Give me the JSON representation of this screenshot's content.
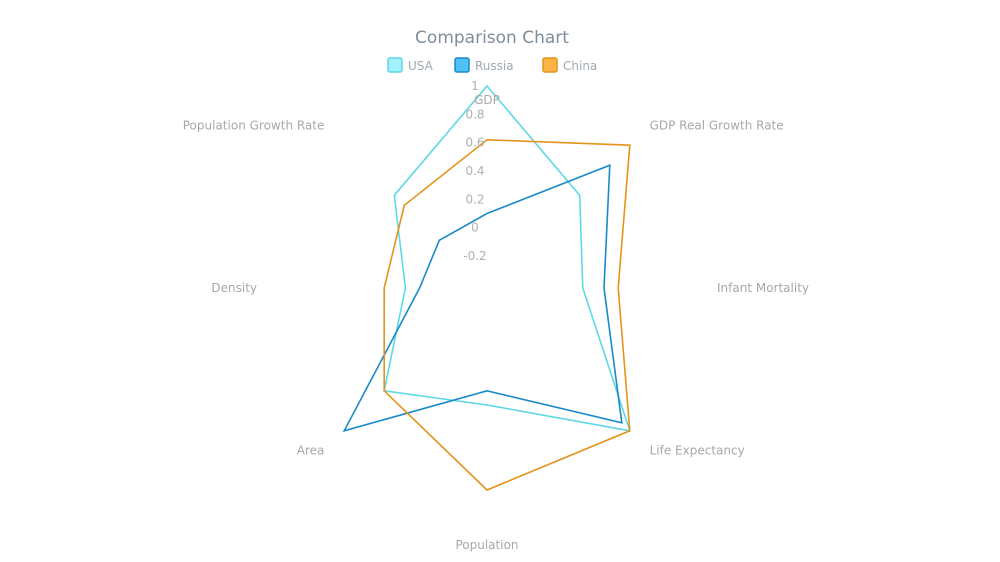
{
  "chart_data": {
    "type": "radar",
    "title": "Comparison Chart",
    "categories": [
      "GDP",
      "GDP Real Growth Rate",
      "Infant Mortality",
      "Life Expectancy",
      "Population",
      "Area",
      "Density",
      "Population Growth Rate"
    ],
    "rticks": [
      "1",
      "0.8",
      "0.6",
      "0.4",
      "0.2",
      "0",
      "-0.2"
    ],
    "rlim": [
      -0.2,
      1
    ],
    "grid": false,
    "legend_position": "top-center",
    "series": [
      {
        "name": "USA",
        "color": "#5fd8e6",
        "fill": "#a4f2ff",
        "values": [
          1,
          0.5,
          0.25,
          1,
          0.4,
          0.6,
          0.15,
          0.5
        ]
      },
      {
        "name": "Russia",
        "color": "#1a8ac8",
        "fill": "#4fc3f7",
        "values": [
          0.1,
          0.8,
          0.4,
          0.92,
          0.3,
          1.0,
          0.05,
          0.05
        ]
      },
      {
        "name": "China",
        "color": "#e4941c",
        "fill": "#fbb345",
        "values": [
          0.62,
          1,
          0.5,
          1.0,
          1.0,
          0.6,
          0.3,
          0.4
        ]
      }
    ]
  }
}
